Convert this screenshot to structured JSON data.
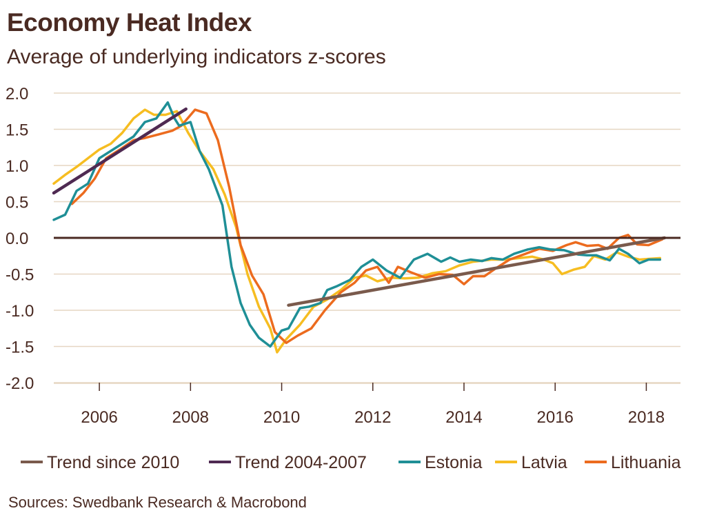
{
  "title": "Economy Heat Index",
  "subtitle": "Average of underlying indicators z-scores",
  "source": "Sources: Swedbank Research & Macrobond",
  "chart_data": {
    "type": "line",
    "title": "Economy Heat Index",
    "subtitle": "Average of underlying indicators z-scores",
    "xlabel": "",
    "ylabel": "",
    "xlim": [
      2005.0,
      2018.75
    ],
    "ylim": [
      -2.0,
      2.0
    ],
    "x_ticks": [
      2006,
      2008,
      2010,
      2012,
      2014,
      2016,
      2018
    ],
    "x_tick_labels": [
      "2006",
      "2008",
      "2010",
      "2012",
      "2014",
      "2016",
      "2018"
    ],
    "y_ticks": [
      2.0,
      1.5,
      1.0,
      0.5,
      0.0,
      -0.5,
      -1.0,
      -1.5,
      -2.0
    ],
    "y_tick_labels": [
      "2.0",
      "1.5",
      "1.0",
      "0.5",
      "0.0",
      "-0.5",
      "-1.0",
      "-1.5",
      "-2.0"
    ],
    "grid": "horizontal",
    "legend_position": "bottom",
    "zero_line": true,
    "series": [
      {
        "name": "Trend since 2010",
        "color": "#7a5a4c",
        "x": [
          2010.15,
          2018.4
        ],
        "y": [
          -0.93,
          0.0
        ]
      },
      {
        "name": "Trend 2004-2007",
        "color": "#4f2a52",
        "x": [
          2005.0,
          2007.9
        ],
        "y": [
          0.62,
          1.78
        ]
      },
      {
        "name": "Estonia",
        "color": "#1f8f96",
        "x": [
          2005.0,
          2005.25,
          2005.5,
          2005.75,
          2006.0,
          2006.25,
          2006.5,
          2006.75,
          2007.0,
          2007.25,
          2007.5,
          2007.65,
          2007.75,
          2008.0,
          2008.2,
          2008.4,
          2008.7,
          2008.9,
          2009.1,
          2009.3,
          2009.5,
          2009.75,
          2010.0,
          2010.15,
          2010.4,
          2010.6,
          2010.85,
          2011.0,
          2011.2,
          2011.5,
          2011.75,
          2012.0,
          2012.3,
          2012.6,
          2012.9,
          2013.2,
          2013.5,
          2013.7,
          2013.9,
          2014.15,
          2014.4,
          2014.6,
          2014.85,
          2015.1,
          2015.4,
          2015.65,
          2015.9,
          2016.2,
          2016.5,
          2016.7,
          2016.9,
          2017.2,
          2017.4,
          2017.6,
          2017.85,
          2018.05,
          2018.3
        ],
        "y": [
          0.25,
          0.32,
          0.65,
          0.75,
          1.1,
          1.2,
          1.3,
          1.4,
          1.6,
          1.65,
          1.87,
          1.65,
          1.55,
          1.6,
          1.2,
          0.95,
          0.45,
          -0.4,
          -0.9,
          -1.2,
          -1.38,
          -1.5,
          -1.28,
          -1.25,
          -0.97,
          -0.95,
          -0.9,
          -0.72,
          -0.67,
          -0.58,
          -0.4,
          -0.3,
          -0.45,
          -0.55,
          -0.3,
          -0.22,
          -0.33,
          -0.27,
          -0.33,
          -0.3,
          -0.32,
          -0.28,
          -0.3,
          -0.22,
          -0.16,
          -0.13,
          -0.16,
          -0.17,
          -0.23,
          -0.24,
          -0.24,
          -0.31,
          -0.15,
          -0.22,
          -0.35,
          -0.3,
          -0.3
        ]
      },
      {
        "name": "Latvia",
        "color": "#f6bd21",
        "x": [
          2005.0,
          2005.25,
          2005.5,
          2005.75,
          2006.0,
          2006.25,
          2006.5,
          2006.75,
          2007.0,
          2007.2,
          2007.45,
          2007.7,
          2007.95,
          2008.2,
          2008.5,
          2008.75,
          2009.0,
          2009.25,
          2009.5,
          2009.75,
          2009.9,
          2010.1,
          2010.4,
          2010.7,
          2011.0,
          2011.3,
          2011.6,
          2011.85,
          2012.1,
          2012.4,
          2012.7,
          2013.0,
          2013.3,
          2013.6,
          2013.9,
          2014.2,
          2014.6,
          2014.9,
          2015.2,
          2015.5,
          2015.75,
          2015.95,
          2016.15,
          2016.4,
          2016.65,
          2016.85,
          2017.1,
          2017.35,
          2017.6,
          2017.85,
          2018.05,
          2018.3
        ],
        "y": [
          0.75,
          0.87,
          0.98,
          1.1,
          1.22,
          1.3,
          1.45,
          1.65,
          1.77,
          1.7,
          1.7,
          1.75,
          1.45,
          1.2,
          0.95,
          0.6,
          0.15,
          -0.5,
          -0.95,
          -1.25,
          -1.58,
          -1.4,
          -1.2,
          -0.95,
          -0.85,
          -0.72,
          -0.55,
          -0.52,
          -0.6,
          -0.55,
          -0.56,
          -0.55,
          -0.49,
          -0.46,
          -0.38,
          -0.33,
          -0.3,
          -0.3,
          -0.28,
          -0.26,
          -0.3,
          -0.35,
          -0.5,
          -0.44,
          -0.4,
          -0.25,
          -0.3,
          -0.2,
          -0.26,
          -0.3,
          -0.29,
          -0.28
        ]
      },
      {
        "name": "Lithuania",
        "color": "#ec6b1e",
        "x": [
          2005.4,
          2005.65,
          2005.9,
          2006.15,
          2006.45,
          2006.75,
          2007.0,
          2007.3,
          2007.6,
          2007.8,
          2008.1,
          2008.35,
          2008.6,
          2008.85,
          2009.1,
          2009.35,
          2009.6,
          2009.85,
          2010.1,
          2010.35,
          2010.65,
          2010.95,
          2011.3,
          2011.6,
          2011.85,
          2012.1,
          2012.35,
          2012.55,
          2012.85,
          2013.15,
          2013.45,
          2013.75,
          2014.0,
          2014.2,
          2014.45,
          2014.7,
          2015.0,
          2015.35,
          2015.65,
          2015.95,
          2016.25,
          2016.45,
          2016.7,
          2016.95,
          2017.15,
          2017.4,
          2017.6,
          2017.8,
          2018.05,
          2018.35
        ],
        "y": [
          0.47,
          0.62,
          0.82,
          1.1,
          1.22,
          1.35,
          1.38,
          1.43,
          1.48,
          1.55,
          1.77,
          1.72,
          1.35,
          0.7,
          -0.1,
          -0.52,
          -0.78,
          -1.3,
          -1.45,
          -1.35,
          -1.25,
          -1.0,
          -0.75,
          -0.62,
          -0.45,
          -0.4,
          -0.62,
          -0.4,
          -0.48,
          -0.55,
          -0.5,
          -0.51,
          -0.64,
          -0.53,
          -0.53,
          -0.42,
          -0.3,
          -0.22,
          -0.15,
          -0.18,
          -0.1,
          -0.06,
          -0.11,
          -0.1,
          -0.15,
          0.0,
          0.04,
          -0.09,
          -0.1,
          -0.02
        ]
      }
    ]
  }
}
